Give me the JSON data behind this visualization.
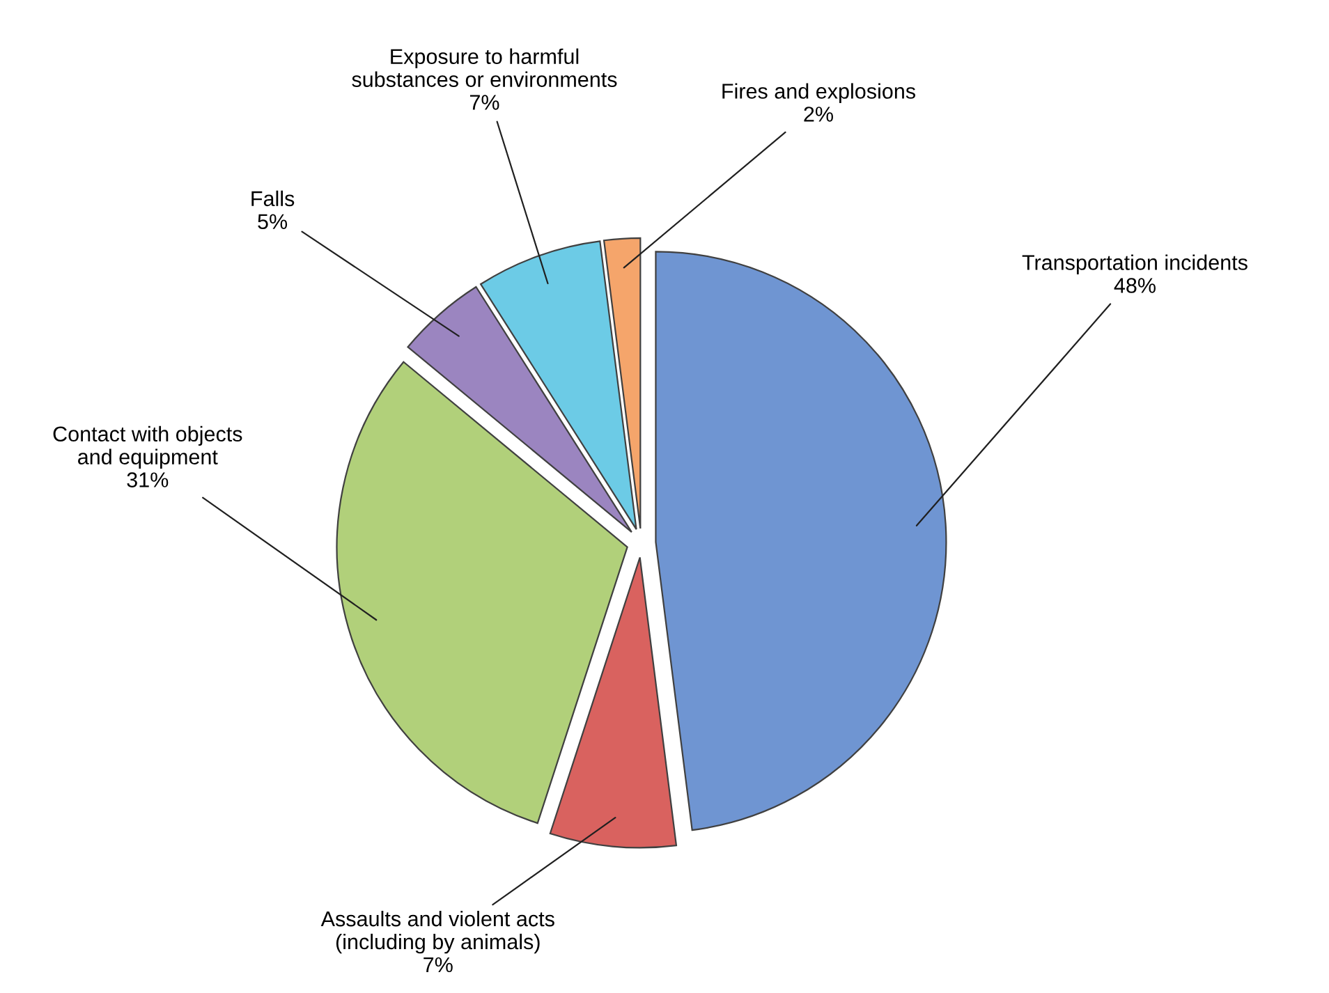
{
  "chart_data": {
    "type": "pie",
    "categories": [
      "Transportation incidents",
      "Assaults and violent acts\n(including by animals)",
      "Contact with objects\nand equipment",
      "Falls",
      "Exposure to harmful\nsubstances or environments",
      "Fires and explosions"
    ],
    "values": [
      48,
      7,
      31,
      5,
      7,
      2
    ],
    "value_labels": [
      "48%",
      "7%",
      "31%",
      "5%",
      "7%",
      "2%"
    ],
    "colors": [
      "#6f95d2",
      "#d9625f",
      "#b1d07a",
      "#9b85c0",
      "#6ccbe6",
      "#f5a56b"
    ]
  }
}
